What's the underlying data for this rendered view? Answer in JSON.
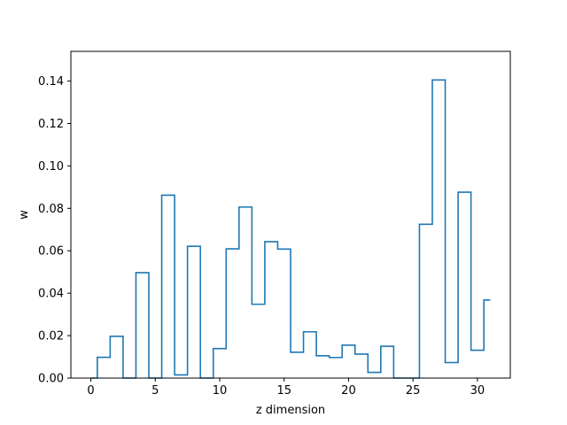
{
  "chart_data": {
    "type": "step",
    "title": "",
    "xlabel": "z dimension",
    "ylabel": "w",
    "xlim": [
      -1.55,
      32.55
    ],
    "ylim": [
      0,
      0.154
    ],
    "xticks": [
      0,
      5,
      10,
      15,
      20,
      25,
      30
    ],
    "xtick_labels": [
      "0",
      "5",
      "10",
      "15",
      "20",
      "25",
      "30"
    ],
    "yticks": [
      0.0,
      0.02,
      0.04,
      0.06,
      0.08,
      0.1,
      0.12,
      0.14
    ],
    "ytick_labels": [
      "0.00",
      "0.02",
      "0.04",
      "0.06",
      "0.08",
      "0.10",
      "0.12",
      "0.14"
    ],
    "grid": false,
    "step_where": "mid",
    "series": [
      {
        "color": "#1f77b4",
        "x": [
          0,
          1,
          2,
          3,
          4,
          5,
          6,
          7,
          8,
          9,
          10,
          11,
          12,
          13,
          14,
          15,
          16,
          17,
          18,
          19,
          20,
          21,
          22,
          23,
          24,
          25,
          26,
          27,
          28,
          29,
          30,
          31
        ],
        "values": [
          0.0,
          0.0098,
          0.0197,
          0.0,
          0.0497,
          0.0,
          0.0862,
          0.0015,
          0.0621,
          0.0,
          0.0139,
          0.0609,
          0.0806,
          0.0348,
          0.0643,
          0.0608,
          0.0122,
          0.0218,
          0.0105,
          0.0097,
          0.0155,
          0.0113,
          0.0027,
          0.015,
          0.0,
          0.0,
          0.0725,
          0.1405,
          0.0073,
          0.0876,
          0.0131,
          0.0368
        ]
      }
    ]
  }
}
